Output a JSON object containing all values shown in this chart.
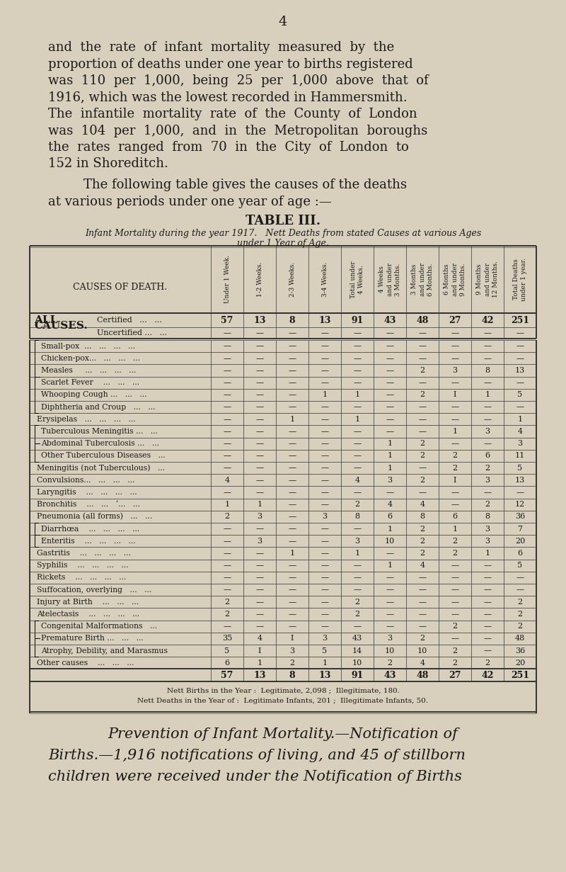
{
  "bg_color": "#d8cfbc",
  "text_color": "#1a1a1a",
  "page_num": "4",
  "intro_lines": [
    "and  the  rate  of  infant  mortality  measured  by  the",
    "proportion of deaths under one year to births registered",
    "was  110  per  1,000,  being  25  per  1,000  above  that  of",
    "1916, which was the lowest recorded in Hammersmith.",
    "The  infantile  mortality  rate  of  the  County  of  London",
    "was  104  per  1,000,  and  in  the  Metropolitan  boroughs",
    "the  rates  ranged  from  70  in  the  City  of  London  to",
    "152 in Shoreditch."
  ],
  "para2_lines": [
    "The following table gives the causes of the deaths",
    "at various periods under one year of age :—"
  ],
  "table_title": "TABLE III.",
  "subtitle1": "Infant Mortality during the year 1917.   Nett Deaths from stated Causes at various Ages",
  "subtitle2": "under 1 Year of Age.",
  "col_headers": [
    "Under 1 Week.",
    "1-2 Weeks.",
    "2-3 Weeks.",
    "3-4 Weeks.",
    "Total under\n4 Weeks.",
    "4 Weeks\nand under\n3 Months.",
    "3 Months\nand under\n6 Months.",
    "6 Months\nand under\n9 Months.",
    "9 Months\nand under\n12 Months.",
    "Total Deaths\nunder 1 year."
  ],
  "cause_header": "CAUSES OF DEATH.",
  "all_causes_label1": "ALL",
  "all_causes_label2": "CAUSES.",
  "all_causes_sub1": "Certified   ...   ...",
  "all_causes_sub2": "Uncertified ...   ...",
  "all_causes_vals": [
    "57",
    "13",
    "8",
    "13",
    "91",
    "43",
    "48",
    "27",
    "42",
    "251"
  ],
  "uncert_vals": [
    "—",
    "—",
    "—",
    "—",
    "—",
    "—",
    "—",
    "—",
    "—",
    "—"
  ],
  "data_rows": [
    {
      "cause": "Small-pox  ...   ...   ...   ...",
      "grp": "A",
      "values": [
        "—",
        "—",
        "—",
        "—",
        "—",
        "—",
        "—",
        "—",
        "—",
        "—"
      ]
    },
    {
      "cause": "Chicken-pox...   ...   ...   ...",
      "grp": "A",
      "values": [
        "—",
        "—",
        "—",
        "—",
        "—",
        "—",
        "—",
        "—",
        "—",
        "—"
      ]
    },
    {
      "cause": "Measles     ...   ...   ...   ...",
      "grp": "A",
      "values": [
        "—",
        "—",
        "—",
        "—",
        "—",
        "—",
        "2",
        "3",
        "8",
        "13"
      ]
    },
    {
      "cause": "Scarlet Fever    ...   ...   ...",
      "grp": "A",
      "values": [
        "—",
        "—",
        "—",
        "—",
        "—",
        "—",
        "—",
        "—",
        "—",
        "—"
      ]
    },
    {
      "cause": "Whooping Cough ...   ...   ...",
      "grp": "A",
      "values": [
        "—",
        "—",
        "—",
        "1",
        "1",
        "—",
        "2",
        "I",
        "1",
        "5"
      ]
    },
    {
      "cause": "Diphtheria and Croup   ...   ...",
      "grp": "A",
      "values": [
        "—",
        "—",
        "—",
        "—",
        "—",
        "—",
        "—",
        "—",
        "—",
        "—"
      ]
    },
    {
      "cause": "Erysipelas   ...   ...   ...   ...",
      "grp": "",
      "values": [
        "—",
        "—",
        "1",
        "—",
        "1",
        "—",
        "—",
        "—",
        "—",
        "1"
      ]
    },
    {
      "cause": "Tuberculous Meningitis ...   ...",
      "grp": "B",
      "values": [
        "—",
        "—",
        "—",
        "—",
        "—",
        "—",
        "—",
        "1",
        "3",
        "4"
      ]
    },
    {
      "cause": "Abdominal Tuberculosis ...   ...",
      "grp": "B",
      "values": [
        "—",
        "—",
        "—",
        "—",
        "—",
        "1",
        "2",
        "—",
        "—",
        "3"
      ]
    },
    {
      "cause": "Other Tuberculous Diseases   ...",
      "grp": "B",
      "values": [
        "—",
        "—",
        "—",
        "—",
        "—",
        "1",
        "2",
        "2",
        "6",
        "11"
      ]
    },
    {
      "cause": "Meningitis (not Tuberculous)   ...",
      "grp": "",
      "values": [
        "—",
        "—",
        "—",
        "—",
        "—",
        "1",
        "—",
        "2",
        "2",
        "5"
      ]
    },
    {
      "cause": "Convulsions...   ...   ...   ...",
      "grp": "",
      "values": [
        "4",
        "—",
        "—",
        "—",
        "4",
        "3",
        "2",
        "I",
        "3",
        "13"
      ]
    },
    {
      "cause": "Laryngitis    ...   ...   ...   ...",
      "grp": "",
      "values": [
        "—",
        "—",
        "—",
        "—",
        "—",
        "—",
        "—",
        "—",
        "—",
        "—"
      ]
    },
    {
      "cause": "Bronchitis    ...   ...   ‘...   ...",
      "grp": "",
      "values": [
        "1",
        "1",
        "—",
        "—",
        "2",
        "4",
        "4",
        "—",
        "2",
        "12"
      ]
    },
    {
      "cause": "Pneumonia (all forms)   ...   ...",
      "grp": "",
      "values": [
        "2",
        "3",
        "—",
        "3",
        "8",
        "6",
        "8",
        "6",
        "8",
        "36"
      ]
    },
    {
      "cause": "Diarrhœa    ...   ...   ...   ...",
      "grp": "C",
      "values": [
        "—",
        "—",
        "—",
        "—",
        "—",
        "1",
        "2",
        "1",
        "3",
        "7"
      ]
    },
    {
      "cause": "Enteritis    ...   ...   ...   ...",
      "grp": "C",
      "values": [
        "—",
        "3",
        "—",
        "—",
        "3",
        "10",
        "2",
        "2",
        "3",
        "20"
      ]
    },
    {
      "cause": "Gastritis    ...   ...   ...   ...",
      "grp": "",
      "values": [
        "—",
        "—",
        "1",
        "—",
        "1",
        "—",
        "2",
        "2",
        "1",
        "6"
      ]
    },
    {
      "cause": "Syphilis    ...   ...   ...   ...",
      "grp": "",
      "values": [
        "—",
        "—",
        "—",
        "—",
        "—",
        "1",
        "4",
        "—",
        "—",
        "5"
      ]
    },
    {
      "cause": "Rickets    ...   ...   ...   ...",
      "grp": "",
      "values": [
        "—",
        "—",
        "—",
        "—",
        "—",
        "—",
        "—",
        "—",
        "—",
        "—"
      ]
    },
    {
      "cause": "Suffocation, overlying   ...   ...",
      "grp": "",
      "values": [
        "—",
        "—",
        "—",
        "—",
        "—",
        "—",
        "—",
        "—",
        "—",
        "—"
      ]
    },
    {
      "cause": "Injury at Birth    ...   ...   ...",
      "grp": "",
      "values": [
        "2",
        "—",
        "—",
        "—",
        "2",
        "—",
        "—",
        "—",
        "—",
        "2"
      ]
    },
    {
      "cause": "Atelectasis    ...   ...   ...   ...",
      "grp": "",
      "values": [
        "2",
        "—",
        "—",
        "—",
        "2",
        "—",
        "—",
        "—",
        "—",
        "2"
      ]
    },
    {
      "cause": "Congenital Malformations   ...",
      "grp": "D",
      "values": [
        "—",
        "—",
        "—",
        "—",
        "—",
        "—",
        "—",
        "2",
        "—",
        "2"
      ]
    },
    {
      "cause": "Premature Birth ...   ...   ...",
      "grp": "D",
      "values": [
        "35",
        "4",
        "I",
        "3",
        "43",
        "3",
        "2",
        "—",
        "—",
        "48"
      ]
    },
    {
      "cause": "Atrophy, Debility, and Marasmus",
      "grp": "D",
      "values": [
        "5",
        "I",
        "3",
        "5",
        "14",
        "10",
        "10",
        "2",
        "—",
        "36"
      ]
    },
    {
      "cause": "Other causes    ...   ...   ...",
      "grp": "",
      "values": [
        "6",
        "1",
        "2",
        "1",
        "10",
        "2",
        "4",
        "2",
        "2",
        "20"
      ]
    }
  ],
  "total_row_vals": [
    "57",
    "13",
    "8",
    "13",
    "91",
    "43",
    "48",
    "27",
    "42",
    "251"
  ],
  "footer_line1": "Nᴇᴛᴛ Bɪʀᴛʜѕ ɪɴ ᴛʜᴇ Yᴇᴀʀ :  Legitimate, 2,098 ;  Illegitimate, 180.",
  "footer_line1_plain": "Nett Births in the Year :  Legitimate, 2,098 ;  Illegitimate, 180.",
  "footer_line2_plain": "Nett Deaths in the Year of :  Legitimate Infants, 201 ;  Illegitimate Infants, 50.",
  "closing_italic": [
    "Prevention of Infant Mortality.—Notification of",
    "Births.—1,916 notifications of living, and 45 of stillborn",
    "children were received under the Notification of Births"
  ]
}
